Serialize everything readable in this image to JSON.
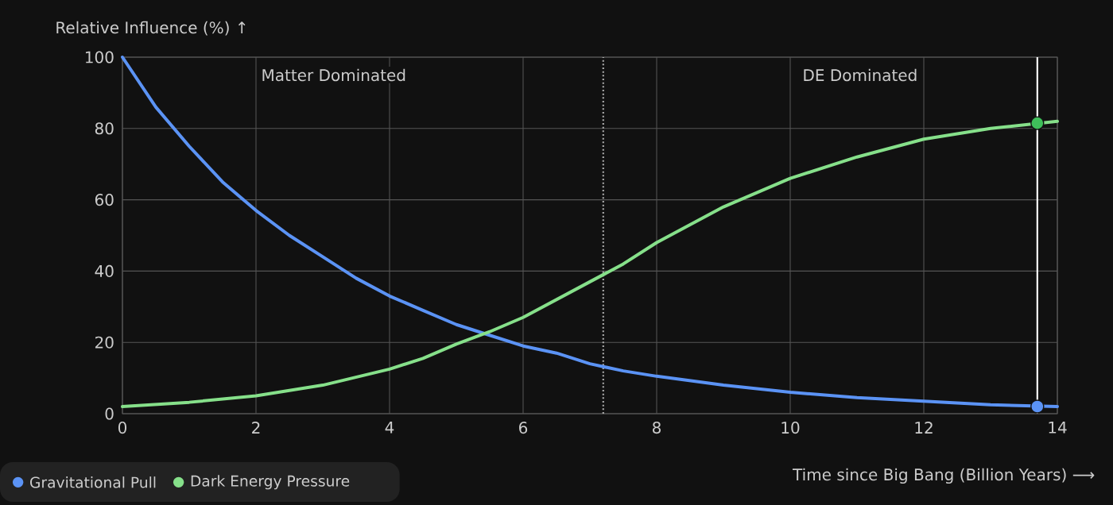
{
  "chart_data": {
    "type": "line",
    "xlabel": "Time since Big Bang (Billion Years) ⟶",
    "ylabel": "Relative Influence (%) ↑",
    "xlim": [
      0,
      14
    ],
    "ylim": [
      0,
      100
    ],
    "xticks": [
      0,
      2,
      4,
      6,
      8,
      10,
      12,
      14
    ],
    "yticks": [
      0,
      20,
      40,
      60,
      80,
      100
    ],
    "grid": true,
    "legend": "bottom left",
    "line_style": "solid",
    "series": [
      {
        "name": "Gravitational Pull",
        "color": "#5b93f5",
        "x": [
          0,
          0.5,
          1,
          1.5,
          2,
          2.5,
          3,
          3.5,
          4,
          4.5,
          5,
          5.5,
          6,
          6.5,
          7,
          7.5,
          8,
          9,
          10,
          11,
          12,
          13,
          14
        ],
        "values": [
          100,
          86,
          75,
          65,
          57,
          50,
          44,
          38,
          33,
          29,
          25,
          22,
          19,
          17,
          14,
          12,
          10.5,
          8,
          6,
          4.5,
          3.5,
          2.5,
          2
        ]
      },
      {
        "name": "Dark Energy Pressure",
        "color": "#86e08a",
        "x": [
          0,
          1,
          2,
          3,
          4,
          4.5,
          5,
          5.5,
          6,
          6.5,
          7,
          7.5,
          8,
          8.5,
          9,
          9.5,
          10,
          11,
          12,
          13,
          14
        ],
        "values": [
          2,
          3.2,
          5,
          8,
          12.5,
          15.5,
          19.5,
          23,
          27,
          32,
          37,
          42,
          48,
          53,
          58,
          62,
          66,
          72,
          77,
          80,
          82
        ]
      },
      {
        "type": "scatter",
        "marker": "circle",
        "color": "#5b93f5",
        "x": [
          13.7
        ],
        "values": [
          2
        ]
      },
      {
        "type": "scatter",
        "marker": "circle",
        "color": "#3fbf5a",
        "x": [
          13.7
        ],
        "values": [
          81.5
        ]
      }
    ],
    "ref_lines": [
      {
        "axis": "x",
        "value": 7.2,
        "color": "#aaaaaa",
        "line_style": "dotted"
      },
      {
        "axis": "x",
        "value": 13.7,
        "color": "#ffffff",
        "line_style": "solid"
      }
    ],
    "annotations": [
      "Matter Dominated",
      "DE Dominated"
    ]
  }
}
